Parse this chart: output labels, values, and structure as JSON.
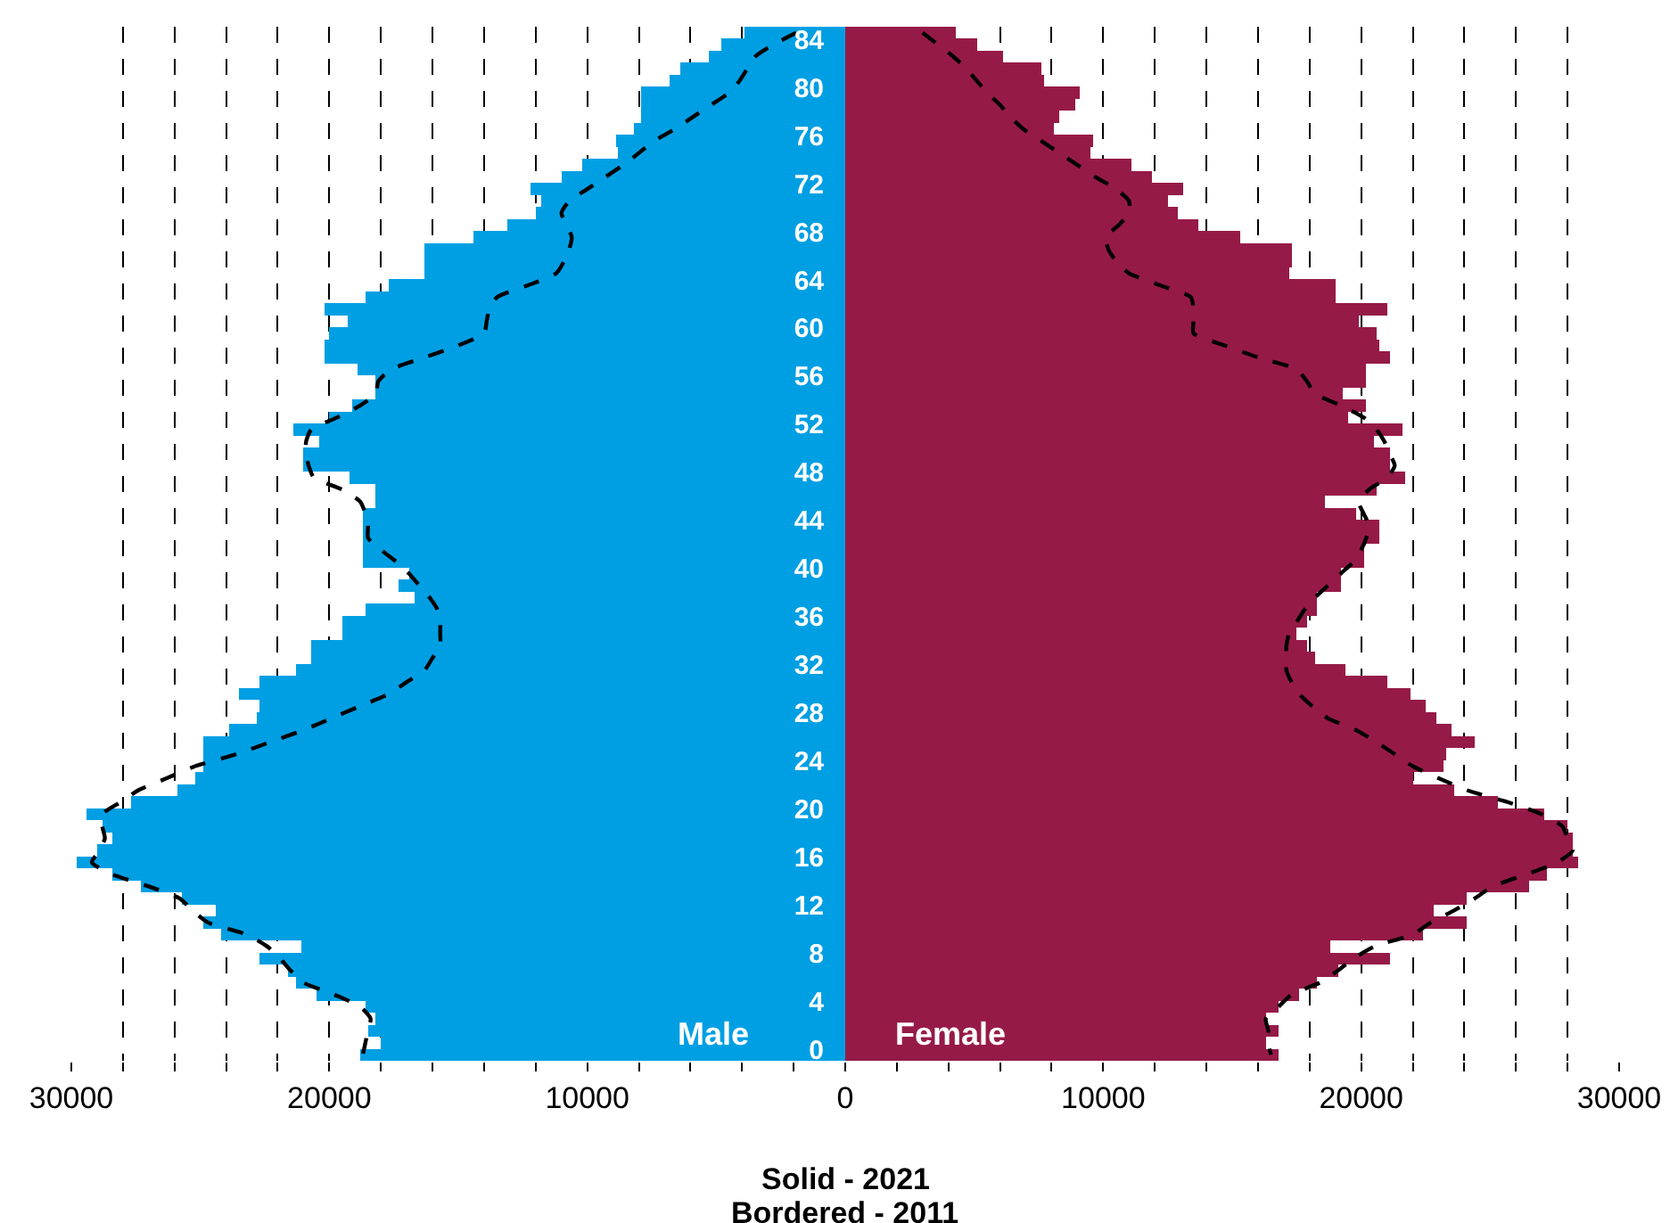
{
  "chart_data": {
    "type": "bar",
    "orientation": "horizontal",
    "categories": [
      null,
      "84",
      null,
      null,
      null,
      "80",
      null,
      null,
      null,
      "76",
      null,
      null,
      null,
      "72",
      null,
      null,
      null,
      "68",
      null,
      null,
      null,
      "64",
      null,
      null,
      null,
      "60",
      null,
      null,
      null,
      "56",
      null,
      null,
      null,
      "52",
      null,
      null,
      null,
      "48",
      null,
      null,
      null,
      "44",
      null,
      null,
      null,
      "40",
      null,
      null,
      null,
      "36",
      null,
      null,
      null,
      "32",
      null,
      null,
      null,
      "28",
      null,
      null,
      null,
      "24",
      null,
      null,
      null,
      "20",
      null,
      null,
      null,
      "16",
      null,
      null,
      null,
      "12",
      null,
      null,
      null,
      "8",
      null,
      null,
      null,
      "4",
      null,
      null,
      null,
      "0"
    ],
    "series": [
      {
        "name": "Male",
        "color": "#009fe3",
        "values": [
          -3900,
          -4800,
          -5300,
          -6400,
          -6800,
          -7900,
          -7900,
          -7900,
          -8200,
          -8900,
          -8800,
          -10200,
          -11000,
          -12200,
          -11800,
          -12000,
          -13100,
          -14400,
          -16300,
          -16300,
          -16300,
          -17700,
          -18600,
          -20200,
          -19300,
          -20000,
          -20200,
          -20200,
          -18900,
          -18200,
          -18200,
          -19100,
          -20000,
          -21400,
          -20400,
          -21000,
          -21000,
          -19200,
          -18200,
          -18200,
          -18700,
          -18700,
          -18700,
          -18700,
          -18700,
          -16900,
          -17300,
          -16700,
          -18600,
          -19500,
          -19500,
          -20700,
          -20700,
          -21300,
          -22700,
          -23500,
          -22700,
          -22800,
          -23900,
          -24900,
          -24900,
          -24900,
          -25200,
          -25900,
          -27700,
          -29400,
          -28800,
          -28400,
          -29000,
          -29800,
          -28400,
          -27300,
          -25700,
          -24400,
          -24900,
          -24200,
          -21100,
          -22700,
          -21600,
          -21300,
          -20500,
          -18600,
          -18200,
          -18500,
          -18000,
          -18800
        ]
      },
      {
        "name": "Female",
        "color": "#961a48",
        "values": [
          4300,
          5100,
          6100,
          7600,
          7700,
          9100,
          8900,
          8300,
          8100,
          9600,
          9500,
          11100,
          11900,
          13100,
          12500,
          12900,
          13700,
          15300,
          17300,
          17300,
          17200,
          19000,
          19000,
          21000,
          19900,
          20600,
          20700,
          21100,
          20200,
          20200,
          19300,
          20200,
          19500,
          21600,
          20500,
          21100,
          21100,
          21700,
          20600,
          18600,
          19800,
          20700,
          20700,
          20100,
          20100,
          19200,
          19200,
          18300,
          18300,
          17900,
          17500,
          17900,
          18200,
          19400,
          21000,
          21900,
          22500,
          22900,
          23500,
          24400,
          23300,
          23200,
          22000,
          23600,
          25300,
          27100,
          28000,
          28200,
          28200,
          28400,
          27200,
          26500,
          24100,
          22800,
          24100,
          22400,
          18800,
          21100,
          19100,
          18300,
          17600,
          16800,
          16300,
          16800,
          16300,
          16800
        ]
      },
      {
        "type": "line",
        "color": "#000000",
        "line_style": "dashed",
        "values": [
          -1900,
          -2800,
          -3500,
          -3800,
          -4100,
          -4500,
          -5200,
          -5900,
          -6600,
          -7400,
          -8000,
          -8600,
          -9300,
          -10000,
          -10700,
          -11000,
          -10800,
          -10600,
          -10700,
          -10900,
          -11200,
          -12300,
          -13500,
          -13800,
          -13900,
          -14000,
          -15000,
          -16300,
          -17600,
          -18100,
          -18200,
          -18800,
          -19700,
          -20700,
          -20900,
          -20900,
          -20800,
          -20600,
          -19500,
          -18800,
          -18600,
          -18500,
          -18500,
          -18000,
          -17400,
          -16900,
          -16500,
          -16100,
          -15800,
          -15700,
          -15700,
          -15700,
          -16000,
          -16300,
          -17000,
          -17700,
          -18800,
          -19900,
          -21000,
          -22300,
          -23600,
          -25200,
          -26300,
          -27400,
          -28100,
          -28800,
          -28800,
          -28700,
          -28900,
          -29200,
          -28400,
          -27000,
          -25800,
          -25300,
          -24700,
          -23200,
          -22400,
          -21900,
          -21500,
          -21000,
          -19800,
          -18800,
          -18400,
          -18500,
          -18600,
          -18700
        ]
      },
      {
        "type": "line",
        "color": "#000000",
        "line_style": "dashed",
        "values": [
          3000,
          3600,
          4200,
          4700,
          5100,
          5500,
          6000,
          6400,
          6900,
          7600,
          8300,
          9000,
          9700,
          10500,
          11000,
          11000,
          10600,
          10100,
          10200,
          10500,
          11000,
          12200,
          13400,
          13500,
          13500,
          13500,
          14700,
          16000,
          17500,
          17900,
          18200,
          19200,
          20100,
          20600,
          20900,
          21100,
          21300,
          21000,
          20300,
          19900,
          20100,
          20300,
          20200,
          20000,
          19700,
          19200,
          18700,
          18200,
          17800,
          17500,
          17200,
          17100,
          17100,
          17100,
          17300,
          17600,
          18100,
          18700,
          19800,
          20600,
          21300,
          22000,
          23000,
          24100,
          25700,
          27000,
          27800,
          28000,
          28200,
          27600,
          26400,
          25100,
          24400,
          23600,
          22700,
          22000,
          20500,
          19700,
          19100,
          18400,
          17300,
          16800,
          16300,
          16400,
          16400,
          16500
        ]
      }
    ],
    "xlim": [
      -30000,
      30000
    ],
    "stacked": true,
    "xticks": [
      {
        "value": -30000,
        "label": "30000"
      },
      {
        "value": -28000,
        "label": null
      },
      {
        "value": -26000,
        "label": null
      },
      {
        "value": -24000,
        "label": null
      },
      {
        "value": -22000,
        "label": null
      },
      {
        "value": -20000,
        "label": "20000"
      },
      {
        "value": -18000,
        "label": null
      },
      {
        "value": -16000,
        "label": null
      },
      {
        "value": -14000,
        "label": null
      },
      {
        "value": -12000,
        "label": null
      },
      {
        "value": -10000,
        "label": "10000"
      },
      {
        "value": -8000,
        "label": null
      },
      {
        "value": -6000,
        "label": null
      },
      {
        "value": -4000,
        "label": null
      },
      {
        "value": -2000,
        "label": null
      },
      0,
      {
        "value": 2000,
        "label": null
      },
      {
        "value": 4000,
        "label": null
      },
      {
        "value": 6000,
        "label": null
      },
      {
        "value": 8000,
        "label": null
      },
      10000,
      {
        "value": 12000,
        "label": null
      },
      {
        "value": 14000,
        "label": null
      },
      {
        "value": 16000,
        "label": null
      },
      {
        "value": 18000,
        "label": null
      },
      20000,
      {
        "value": 22000,
        "label": null
      },
      {
        "value": 24000,
        "label": null
      },
      {
        "value": 26000,
        "label": null
      },
      {
        "value": 28000,
        "label": null
      },
      30000
    ],
    "grid": "x",
    "annotations": [
      "Solid - 2021",
      "Bordered - 2011"
    ]
  }
}
